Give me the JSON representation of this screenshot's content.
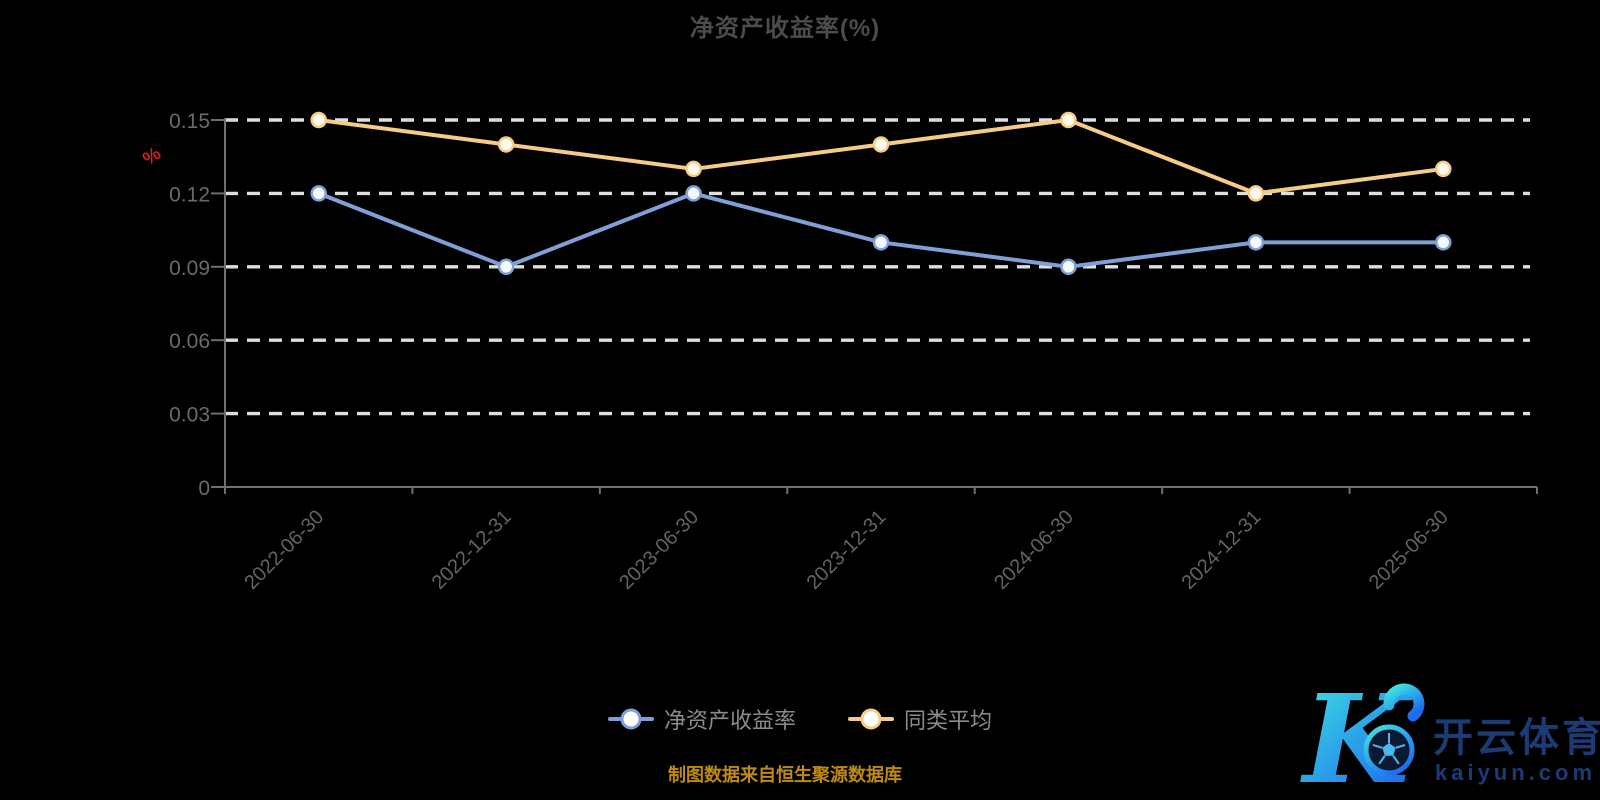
{
  "page": {
    "background": "#000000"
  },
  "header": {
    "title": "净资产收益率(%)"
  },
  "y_axis": {
    "name": "%",
    "name_color": "#cc2020",
    "tick_labels": [
      "0",
      "0.03",
      "0.06",
      "0.09",
      "0.12",
      "0.15"
    ]
  },
  "chart_data": {
    "type": "line",
    "title": "净资产收益率(%)",
    "xlabel": "",
    "ylabel": "%",
    "ylim": [
      0,
      0.15
    ],
    "yticks": [
      0,
      0.03,
      0.06,
      0.09,
      0.12,
      0.15
    ],
    "grid": "horizontal-dashed",
    "legend_position": "bottom-center",
    "categories": [
      "2022-06-30",
      "2022-12-31",
      "2023-06-30",
      "2023-12-31",
      "2024-06-30",
      "2024-12-31",
      "2025-06-30"
    ],
    "series": [
      {
        "name": "净资产收益率",
        "color": "#7f9fd6",
        "marker_fill": "#f4f8ff",
        "values": [
          0.12,
          0.09,
          0.12,
          0.1,
          0.09,
          0.1,
          0.1
        ]
      },
      {
        "name": "同类平均",
        "color": "#f6cc85",
        "marker_fill": "#fffaf0",
        "values": [
          0.15,
          0.14,
          0.13,
          0.14,
          0.15,
          0.12,
          0.13
        ]
      }
    ]
  },
  "footer": {
    "text": "制图数据来自恒生聚源数据库",
    "color": "#bd8a12"
  },
  "watermark": {
    "letter": "K",
    "brand": "开云体育",
    "domain": "kaiyun.com",
    "text_color": "#1c3a74",
    "gradient_start": "#3fe8e0",
    "gradient_end": "#1d6cf0",
    "ball_fill": "#0b1a33",
    "ball_line": "#4fb7f0"
  }
}
